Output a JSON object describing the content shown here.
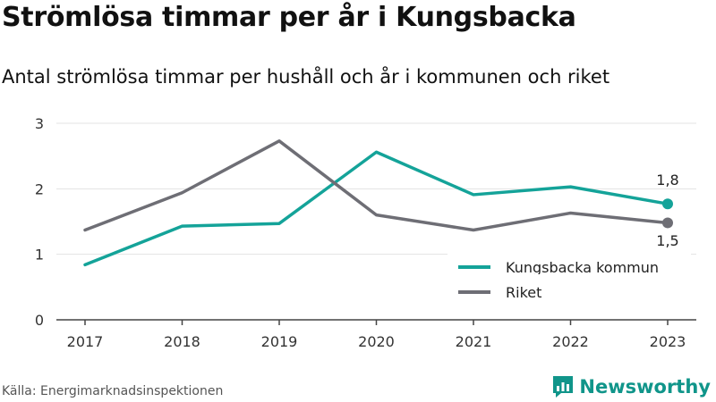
{
  "title": "Strömlösa timmar per år i Kungsbacka",
  "subtitle": "Antal strömlösa timmar per hushåll och år i kommunen och riket",
  "source": "Källa: Energimarknadsinspektionen",
  "brand": "Newsworthy",
  "colors": {
    "kungsbacka": "#14a399",
    "riket": "#6e6e75",
    "grid": "#e3e3e3",
    "axis": "#444444",
    "brand": "#10958a"
  },
  "chart_data": {
    "type": "line",
    "title": "Strömlösa timmar per år i Kungsbacka",
    "subtitle": "Antal strömlösa timmar per hushåll och år i kommunen och riket",
    "categories": [
      "2017",
      "2018",
      "2019",
      "2020",
      "2021",
      "2022",
      "2023"
    ],
    "ylim": [
      0,
      3
    ],
    "yticks": [
      "0",
      "1",
      "2",
      "3"
    ],
    "grid": true,
    "legend_position": "bottom-right",
    "series": [
      {
        "name": "Kungsbacka kommun",
        "values": [
          0.84,
          1.43,
          1.47,
          2.56,
          1.91,
          2.03,
          1.77
        ],
        "end_label": "1,8",
        "color": "#14a399"
      },
      {
        "name": "Riket",
        "values": [
          1.37,
          1.94,
          2.73,
          1.6,
          1.37,
          1.63,
          1.48
        ],
        "end_label": "1,5",
        "color": "#6e6e75"
      }
    ]
  }
}
